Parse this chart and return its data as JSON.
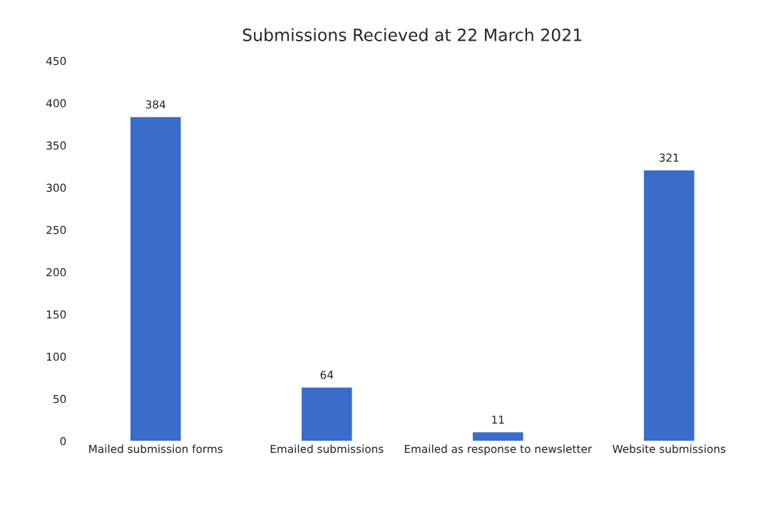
{
  "chart_data": {
    "type": "bar",
    "title": "Submissions Recieved at 22 March 2021",
    "categories": [
      "Mailed submission forms",
      "Emailed submissions",
      "Emailed as response to newsletter",
      "Website submissions"
    ],
    "values": [
      384,
      64,
      11,
      321
    ],
    "color": "#3a6cc9",
    "ylim": [
      0,
      450
    ],
    "yticks": [
      0,
      50,
      100,
      150,
      200,
      250,
      300,
      350,
      400,
      450
    ],
    "data_labels": true,
    "grid": false
  }
}
